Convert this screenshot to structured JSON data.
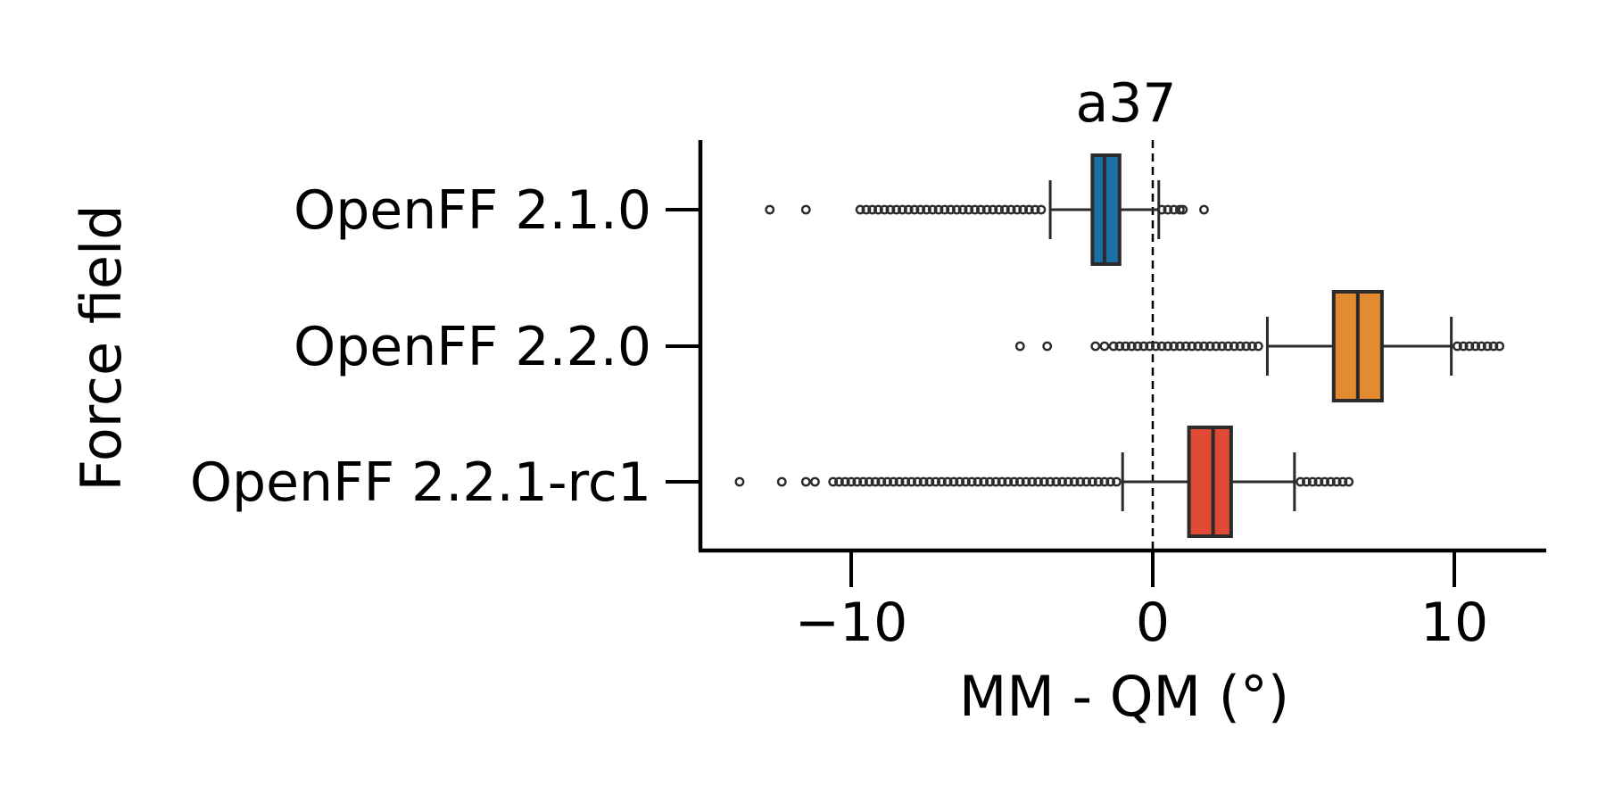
{
  "chart_data": {
    "type": "box",
    "orientation": "horizontal",
    "title": "a37",
    "xlabel": "MM - QM (°)",
    "ylabel": "Force field",
    "xlim": [
      -14.8,
      13.2
    ],
    "xticks": [
      -10,
      0,
      10
    ],
    "xtick_labels": [
      "−10",
      "0",
      "10"
    ],
    "reference_line": {
      "x": 0,
      "style": "dashed"
    },
    "grid": false,
    "series": [
      {
        "name": "OpenFF 2.1.0",
        "color": "#1a6fa5",
        "whisker_low": -3.4,
        "q1": -2.0,
        "median": -1.6,
        "q3": -1.1,
        "whisker_high": 0.2,
        "outliers": [
          -12.7,
          -11.5,
          -9.7,
          -9.5,
          -9.3,
          -9.1,
          -8.9,
          -8.7,
          -8.5,
          -8.3,
          -8.1,
          -7.9,
          -7.7,
          -7.5,
          -7.3,
          -7.1,
          -6.9,
          -6.7,
          -6.5,
          -6.3,
          -6.1,
          -5.9,
          -5.7,
          -5.5,
          -5.3,
          -5.1,
          -4.9,
          -4.7,
          -4.5,
          -4.3,
          -4.1,
          -3.9,
          -3.7,
          0.3,
          0.5,
          0.7,
          0.9,
          1.0,
          1.7
        ]
      },
      {
        "name": "OpenFF 2.2.0",
        "color": "#e38b30",
        "whisker_low": 3.8,
        "q1": 6.0,
        "median": 6.8,
        "q3": 7.6,
        "whisker_high": 9.9,
        "outliers": [
          -4.4,
          -3.5,
          -1.9,
          -1.6,
          -1.3,
          -1.1,
          -0.9,
          -0.7,
          -0.5,
          -0.3,
          -0.1,
          0.1,
          0.3,
          0.5,
          0.7,
          0.9,
          1.1,
          1.3,
          1.5,
          1.7,
          1.9,
          2.1,
          2.3,
          2.5,
          2.7,
          2.9,
          3.1,
          3.3,
          3.5,
          10.1,
          10.3,
          10.5,
          10.7,
          10.9,
          11.1,
          11.3,
          11.5
        ]
      },
      {
        "name": "OpenFF 2.2.1-rc1",
        "color": "#e04a34",
        "whisker_low": -1.0,
        "q1": 1.2,
        "median": 2.0,
        "q3": 2.6,
        "whisker_high": 4.7,
        "outliers": [
          -13.7,
          -12.3,
          -11.5,
          -11.2,
          -10.6,
          -10.4,
          -10.2,
          -10.0,
          -9.8,
          -9.6,
          -9.4,
          -9.2,
          -9.0,
          -8.8,
          -8.6,
          -8.4,
          -8.2,
          -8.0,
          -7.8,
          -7.6,
          -7.4,
          -7.2,
          -7.0,
          -6.8,
          -6.6,
          -6.4,
          -6.2,
          -6.0,
          -5.8,
          -5.6,
          -5.4,
          -5.2,
          -5.0,
          -4.8,
          -4.6,
          -4.4,
          -4.2,
          -4.0,
          -3.8,
          -3.6,
          -3.4,
          -3.2,
          -3.0,
          -2.8,
          -2.6,
          -2.4,
          -2.2,
          -2.0,
          -1.8,
          -1.6,
          -1.4,
          -1.2,
          4.9,
          5.1,
          5.3,
          5.5,
          5.7,
          5.9,
          6.1,
          6.3,
          6.5
        ]
      }
    ]
  }
}
